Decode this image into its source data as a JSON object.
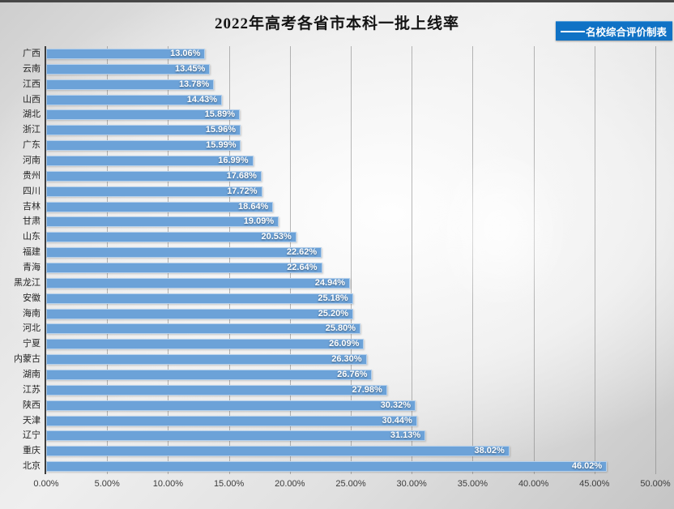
{
  "title": "2022年高考各省市本科一批上线率",
  "legend": {
    "label": "名校综合评价制表",
    "bg_color": "#1072C5",
    "marker": "line",
    "marker_color": "#FFFFFF",
    "position": "top-right"
  },
  "colors": {
    "bar": "#6CA2D8",
    "axis_line": "#3D3D3D",
    "gridline": "#7D7D7D",
    "value_label": "#FFFFFF",
    "category_label": "#242424",
    "background_edge": "#C5C5C5",
    "background_center": "#F7F7F7"
  },
  "chart_data": {
    "type": "bar",
    "orientation": "horizontal",
    "title": "2022年高考各省市本科一批上线率",
    "xlabel": "",
    "ylabel": "",
    "xlim": [
      0,
      50
    ],
    "grid": true,
    "legend_entries": [
      "名校综合评价制表"
    ],
    "legend_position": "top-right",
    "x_ticks": [
      "0.00%",
      "5.00%",
      "10.00%",
      "15.00%",
      "20.00%",
      "25.00%",
      "30.00%",
      "35.00%",
      "40.00%",
      "45.00%",
      "50.00%"
    ],
    "x_tick_values": [
      0,
      5,
      10,
      15,
      20,
      25,
      30,
      35,
      40,
      45,
      50
    ],
    "categories": [
      "广西",
      "云南",
      "江西",
      "山西",
      "湖北",
      "浙江",
      "广东",
      "河南",
      "贵州",
      "四川",
      "吉林",
      "甘肃",
      "山东",
      "福建",
      "青海",
      "黑龙江",
      "安徽",
      "海南",
      "河北",
      "宁夏",
      "内蒙古",
      "湖南",
      "江苏",
      "陕西",
      "天津",
      "辽宁",
      "重庆",
      "北京"
    ],
    "values": [
      13.06,
      13.45,
      13.78,
      14.43,
      15.89,
      15.96,
      15.99,
      16.99,
      17.68,
      17.72,
      18.64,
      19.09,
      20.53,
      22.62,
      22.64,
      24.94,
      25.18,
      25.2,
      25.8,
      26.09,
      26.3,
      26.76,
      27.98,
      30.32,
      30.44,
      31.13,
      38.02,
      46.02
    ],
    "value_labels": [
      "13.06%",
      "13.45%",
      "13.78%",
      "14.43%",
      "15.89%",
      "15.96%",
      "15.99%",
      "16.99%",
      "17.68%",
      "17.72%",
      "18.64%",
      "19.09%",
      "20.53%",
      "22.62%",
      "22.64%",
      "24.94%",
      "25.18%",
      "25.20%",
      "25.80%",
      "26.09%",
      "26.30%",
      "26.76%",
      "27.98%",
      "30.32%",
      "30.44%",
      "31.13%",
      "38.02%",
      "46.02%"
    ]
  }
}
